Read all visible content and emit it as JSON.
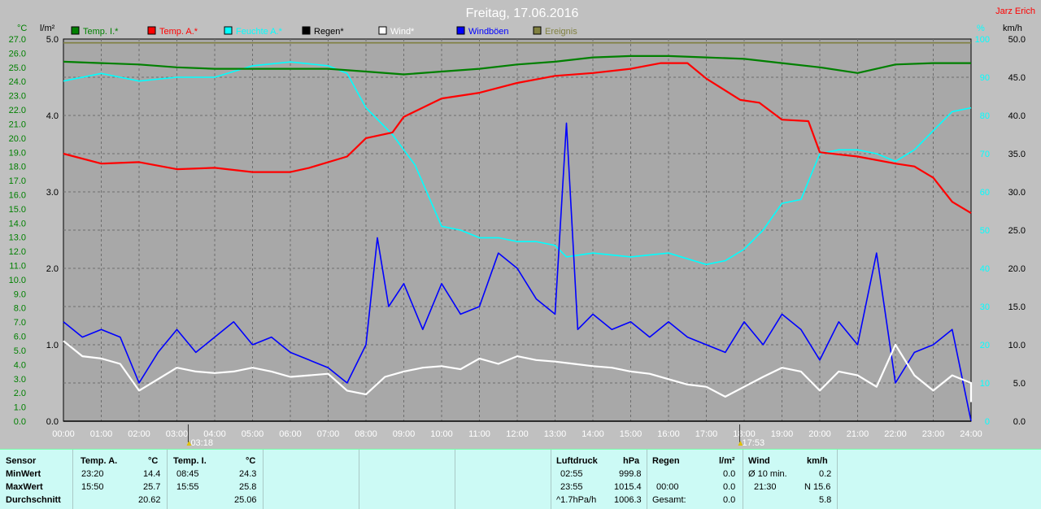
{
  "header": {
    "title": "Freitag, 17.06.2016",
    "author": "Jarz Erich"
  },
  "units": {
    "left_c": "°C",
    "left_l": "l/m²",
    "right_pct": "%",
    "right_kmh": "km/h"
  },
  "legend": [
    {
      "name": "Temp. I.*",
      "color": "#008000"
    },
    {
      "name": "Temp. A.*",
      "color": "#ff0000"
    },
    {
      "name": "Feuchte A.*",
      "color": "#00ffff"
    },
    {
      "name": "Regen*",
      "color": "#000000"
    },
    {
      "name": "Wind*",
      "color": "#ffffff"
    },
    {
      "name": "Windböen",
      "color": "#0000ff"
    },
    {
      "name": "Ereignis",
      "color": "#808040"
    }
  ],
  "markers": [
    {
      "time": "03:18",
      "hour": 3.3
    },
    {
      "time": "17:53",
      "hour": 17.883
    }
  ],
  "chart_data": {
    "type": "line",
    "title": "Freitag, 17.06.2016",
    "x_ticks": [
      "00:00",
      "01:00",
      "02:00",
      "03:00",
      "04:00",
      "05:00",
      "06:00",
      "07:00",
      "08:00",
      "09:00",
      "10:00",
      "11:00",
      "12:00",
      "13:00",
      "14:00",
      "15:00",
      "16:00",
      "17:00",
      "18:00",
      "19:00",
      "20:00",
      "21:00",
      "22:00",
      "23:00",
      "24:00"
    ],
    "x_range": [
      0,
      24
    ],
    "temp_ticks": [
      "0.0",
      "1.0",
      "2.0",
      "3.0",
      "4.0",
      "5.0",
      "6.0",
      "7.0",
      "8.0",
      "9.0",
      "10.0",
      "11.0",
      "12.0",
      "13.0",
      "14.0",
      "15.0",
      "16.0",
      "17.0",
      "18.0",
      "19.0",
      "20.0",
      "21.0",
      "22.0",
      "23.0",
      "24.0",
      "25.0",
      "26.0",
      "27.0"
    ],
    "temp_range": [
      0,
      27
    ],
    "rain_ticks": [
      "0.0",
      "1.0",
      "2.0",
      "3.0",
      "4.0",
      "5.0"
    ],
    "rain_range": [
      0,
      5
    ],
    "humidity_ticks": [
      "0",
      "10",
      "20",
      "30",
      "40",
      "50",
      "60",
      "70",
      "80",
      "90",
      "100"
    ],
    "humidity_range": [
      0,
      100
    ],
    "wind_ticks": [
      "0.0",
      "5.0",
      "10.0",
      "15.0",
      "20.0",
      "25.0",
      "30.0",
      "35.0",
      "40.0",
      "45.0",
      "50.0"
    ],
    "wind_range": [
      0,
      50
    ],
    "series": [
      {
        "name": "Temp. I.*",
        "axis": "temp",
        "color": "#008000",
        "points": [
          [
            0,
            25.4
          ],
          [
            1,
            25.3
          ],
          [
            2,
            25.2
          ],
          [
            3,
            25.0
          ],
          [
            4,
            24.9
          ],
          [
            5,
            24.9
          ],
          [
            6,
            24.9
          ],
          [
            7,
            24.9
          ],
          [
            8,
            24.7
          ],
          [
            9,
            24.5
          ],
          [
            10,
            24.7
          ],
          [
            11,
            24.9
          ],
          [
            12,
            25.2
          ],
          [
            13,
            25.4
          ],
          [
            14,
            25.7
          ],
          [
            15,
            25.8
          ],
          [
            16,
            25.8
          ],
          [
            17,
            25.7
          ],
          [
            18,
            25.6
          ],
          [
            19,
            25.3
          ],
          [
            20,
            25.0
          ],
          [
            21,
            24.6
          ],
          [
            22,
            25.2
          ],
          [
            23,
            25.3
          ],
          [
            24,
            25.3
          ]
        ]
      },
      {
        "name": "Temp. A.*",
        "axis": "temp",
        "color": "#ff0000",
        "points": [
          [
            0,
            18.9
          ],
          [
            1,
            18.2
          ],
          [
            2,
            18.3
          ],
          [
            3,
            17.8
          ],
          [
            4,
            17.9
          ],
          [
            5,
            17.6
          ],
          [
            6,
            17.6
          ],
          [
            6.5,
            17.9
          ],
          [
            7.5,
            18.7
          ],
          [
            8,
            20.0
          ],
          [
            8.7,
            20.4
          ],
          [
            9,
            21.5
          ],
          [
            10,
            22.8
          ],
          [
            11,
            23.2
          ],
          [
            12,
            23.9
          ],
          [
            13,
            24.4
          ],
          [
            14,
            24.6
          ],
          [
            15,
            24.9
          ],
          [
            15.8,
            25.3
          ],
          [
            16.5,
            25.3
          ],
          [
            17,
            24.2
          ],
          [
            17.9,
            22.7
          ],
          [
            18.4,
            22.5
          ],
          [
            19,
            21.3
          ],
          [
            19.7,
            21.2
          ],
          [
            20,
            19.0
          ],
          [
            21,
            18.7
          ],
          [
            22,
            18.2
          ],
          [
            22.5,
            18.0
          ],
          [
            23,
            17.2
          ],
          [
            23.5,
            15.5
          ],
          [
            24,
            14.7
          ]
        ]
      },
      {
        "name": "Feuchte A.*",
        "axis": "humidity",
        "color": "#00ffff",
        "points": [
          [
            0,
            89
          ],
          [
            1,
            91
          ],
          [
            2,
            89
          ],
          [
            3,
            90
          ],
          [
            4,
            90
          ],
          [
            5,
            93
          ],
          [
            6,
            94
          ],
          [
            7,
            93
          ],
          [
            7.5,
            91
          ],
          [
            8,
            82
          ],
          [
            8.7,
            75
          ],
          [
            9.3,
            67
          ],
          [
            10,
            51
          ],
          [
            10.5,
            50
          ],
          [
            11,
            48
          ],
          [
            11.5,
            48
          ],
          [
            12,
            47
          ],
          [
            12.5,
            47
          ],
          [
            13,
            46
          ],
          [
            13.3,
            43
          ],
          [
            14,
            44
          ],
          [
            15,
            43
          ],
          [
            16,
            44
          ],
          [
            17,
            41
          ],
          [
            17.5,
            42
          ],
          [
            18,
            45
          ],
          [
            18.5,
            50
          ],
          [
            19,
            57
          ],
          [
            19.5,
            58
          ],
          [
            20,
            70
          ],
          [
            20.5,
            71
          ],
          [
            21,
            71
          ],
          [
            21.5,
            70
          ],
          [
            22,
            68
          ],
          [
            22.5,
            71
          ],
          [
            23,
            76
          ],
          [
            23.5,
            81
          ],
          [
            24,
            82
          ]
        ]
      },
      {
        "name": "Regen*",
        "axis": "rain",
        "color": "#000000",
        "points": [
          [
            0,
            0
          ],
          [
            24,
            0
          ]
        ]
      },
      {
        "name": "Wind*",
        "axis": "wind",
        "color": "#ffffff",
        "points": [
          [
            0,
            10.5
          ],
          [
            0.5,
            8.5
          ],
          [
            1,
            8.2
          ],
          [
            1.5,
            7.5
          ],
          [
            2,
            4.0
          ],
          [
            2.5,
            5.5
          ],
          [
            3,
            7.0
          ],
          [
            3.5,
            6.5
          ],
          [
            4,
            6.3
          ],
          [
            4.5,
            6.5
          ],
          [
            5,
            7.0
          ],
          [
            5.5,
            6.5
          ],
          [
            6,
            5.8
          ],
          [
            6.5,
            6.0
          ],
          [
            7,
            6.2
          ],
          [
            7.5,
            4.0
          ],
          [
            8,
            3.5
          ],
          [
            8.5,
            5.8
          ],
          [
            9,
            6.5
          ],
          [
            9.5,
            7.0
          ],
          [
            10,
            7.2
          ],
          [
            10.5,
            6.8
          ],
          [
            11,
            8.2
          ],
          [
            11.5,
            7.5
          ],
          [
            12,
            8.5
          ],
          [
            12.5,
            8.0
          ],
          [
            13,
            7.8
          ],
          [
            13.5,
            7.5
          ],
          [
            14,
            7.2
          ],
          [
            14.5,
            7.0
          ],
          [
            15,
            6.5
          ],
          [
            15.5,
            6.2
          ],
          [
            16,
            5.5
          ],
          [
            16.5,
            4.8
          ],
          [
            17,
            4.5
          ],
          [
            17.5,
            3.2
          ],
          [
            18,
            4.5
          ],
          [
            18.5,
            5.8
          ],
          [
            19,
            7.0
          ],
          [
            19.5,
            6.5
          ],
          [
            20,
            4.0
          ],
          [
            20.5,
            6.5
          ],
          [
            21,
            6.0
          ],
          [
            21.5,
            4.5
          ],
          [
            22,
            10.0
          ],
          [
            22.5,
            6.0
          ],
          [
            23,
            4.0
          ],
          [
            23.5,
            6.0
          ],
          [
            24,
            5.0
          ],
          [
            24,
            2.5
          ]
        ]
      },
      {
        "name": "Windböen",
        "axis": "wind",
        "color": "#0000ff",
        "points": [
          [
            0,
            13
          ],
          [
            0.5,
            11
          ],
          [
            1,
            12
          ],
          [
            1.5,
            11
          ],
          [
            2,
            5
          ],
          [
            2.5,
            9
          ],
          [
            3,
            12
          ],
          [
            3.5,
            9
          ],
          [
            4,
            11
          ],
          [
            4.5,
            13
          ],
          [
            5,
            10
          ],
          [
            5.5,
            11
          ],
          [
            6,
            9
          ],
          [
            6.5,
            8
          ],
          [
            7,
            7
          ],
          [
            7.5,
            5
          ],
          [
            8,
            10
          ],
          [
            8.3,
            24
          ],
          [
            8.6,
            15
          ],
          [
            9,
            18
          ],
          [
            9.5,
            12
          ],
          [
            10,
            18
          ],
          [
            10.5,
            14
          ],
          [
            11,
            15
          ],
          [
            11.5,
            22
          ],
          [
            12,
            20
          ],
          [
            12.5,
            16
          ],
          [
            13,
            14
          ],
          [
            13.3,
            39
          ],
          [
            13.6,
            12
          ],
          [
            14,
            14
          ],
          [
            14.5,
            12
          ],
          [
            15,
            13
          ],
          [
            15.5,
            11
          ],
          [
            16,
            13
          ],
          [
            16.5,
            11
          ],
          [
            17,
            10
          ],
          [
            17.5,
            9
          ],
          [
            18,
            13
          ],
          [
            18.5,
            10
          ],
          [
            19,
            14
          ],
          [
            19.5,
            12
          ],
          [
            20,
            8
          ],
          [
            20.5,
            13
          ],
          [
            21,
            10
          ],
          [
            21.5,
            22
          ],
          [
            22,
            5
          ],
          [
            22.5,
            9
          ],
          [
            23,
            10
          ],
          [
            23.5,
            12
          ],
          [
            24,
            0
          ]
        ]
      },
      {
        "name": "Ereignis",
        "axis": "humidity",
        "color": "#808040",
        "points": [
          [
            0,
            99
          ],
          [
            24,
            99
          ]
        ]
      }
    ]
  },
  "stats": {
    "rows": [
      "Sensor",
      "MinWert",
      "MaxWert",
      "Durchschnitt"
    ],
    "temp_a": {
      "label": "Temp. A.",
      "unit": "°C",
      "min_time": "23:20",
      "min_val": "14.4",
      "max_time": "15:50",
      "max_val": "25.7",
      "avg": "20.62"
    },
    "temp_i": {
      "label": "Temp. I.",
      "unit": "°C",
      "min_time": "08:45",
      "min_val": "24.3",
      "max_time": "15:55",
      "max_val": "25.8",
      "avg": "25.06"
    },
    "pressure": {
      "label": "Luftdruck",
      "unit": "hPa",
      "min_time": "02:55",
      "min_val": "999.8",
      "max_time": "23:55",
      "max_val": "1015.4",
      "trend": "^1.7hPa/h",
      "avg": "1006.3"
    },
    "rain": {
      "label": "Regen",
      "unit": "l/m²",
      "t1": "00:00",
      "v1": "0.0",
      "v0": "0.0",
      "total_label": "Gesamt:",
      "total": "0.0"
    },
    "wind": {
      "label": "Wind",
      "unit": "km/h",
      "avg_label": "Ø 10 min.",
      "avg_val": "0.2",
      "max_time": "21:30",
      "max_val": "N 15.6",
      "avg": "5.8"
    }
  }
}
